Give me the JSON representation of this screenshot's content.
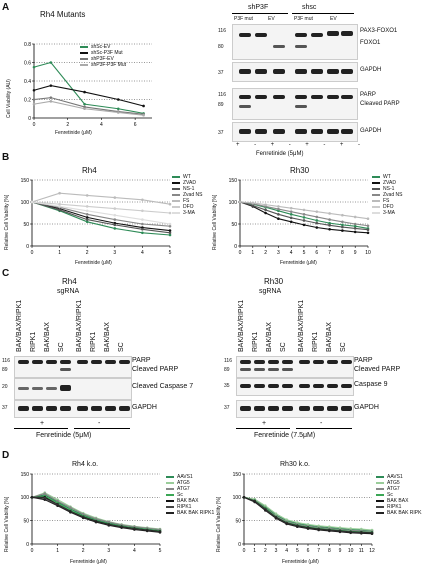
{
  "panelA": {
    "letter": "A",
    "chart_title": "Rh4 Mutants",
    "ylabel": "Cell Viability (AU)",
    "xlabel": "Fenretinide (μM)",
    "legend": [
      "shSc-EV",
      "shSc-P3F Mut",
      "shP3F-EV",
      "shP3F-P3F Mut"
    ],
    "blot_groups": [
      "shP3F",
      "shsc"
    ],
    "blot_subgroups": [
      "P3F mut",
      "EV",
      "P3F mut",
      "EV"
    ],
    "bands": [
      "PAX3-FOXO1",
      "FOXO1",
      "GAPDH",
      "PARP",
      "Cleaved PARP",
      "GAPDH"
    ],
    "mw_top": [
      "116",
      "80",
      "37"
    ],
    "mw_bottom": [
      "116",
      "89",
      "37"
    ],
    "treatment_signs": [
      "+",
      "-",
      "+",
      "-",
      "+",
      "-",
      "+",
      "-"
    ],
    "treatment": "Fenretinide (5μM)"
  },
  "panelB": {
    "letter": "B",
    "chart_titles": [
      "Rh4",
      "Rh30"
    ],
    "ylabel": "Relative Cell Viability [%]",
    "xlabel": "Fenretinide (μM)",
    "legend": [
      "WT",
      "ZVAD",
      "NS-1",
      "Zvad NS",
      "FS",
      "DFO",
      "3-MA"
    ]
  },
  "panelC": {
    "letter": "C",
    "titles": [
      "Rh4",
      "Rh30"
    ],
    "sub": "sgRNA",
    "lanes": [
      "BAK/BAX/RIPK1",
      "RIPK1",
      "BAK/BAX",
      "SC",
      "BAK/BAX/RIPK1",
      "RIPK1",
      "BAK/BAX",
      "SC"
    ],
    "bands_left": [
      "PARP",
      "Cleaved PARP",
      "Cleaved Caspase 7",
      "GAPDH"
    ],
    "bands_right": [
      "PARP",
      "Cleaved PARP",
      "Caspase 9",
      "GAPDH"
    ],
    "mw_left": [
      "116",
      "89",
      "20",
      "37"
    ],
    "mw_right": [
      "116",
      "89",
      "35",
      "37"
    ],
    "signs": [
      "+",
      "-"
    ],
    "treat_left": "Fenretinide (5μM)",
    "treat_right": "Fenretinide (7.5μM)"
  },
  "panelD": {
    "letter": "D",
    "chart_titles": [
      "Rh4 k.o.",
      "Rh30 k.o."
    ],
    "ylabel": "Relative Cell Viability [%]",
    "xlabel": "Fenretinide (μM)",
    "legend": [
      "AAVS1",
      "ATG5",
      "ATG7",
      "Sc",
      "BAK BAX",
      "RIPK1",
      "BAK BAK RIPK1"
    ]
  },
  "chart_data": [
    {
      "type": "line",
      "title": "Rh4 Mutants",
      "xlabel": "Fenretinide (μM)",
      "ylabel": "Cell Viability (AU)",
      "xlim": [
        0,
        7
      ],
      "ylim": [
        0,
        0.8
      ],
      "x_ticks": [
        0,
        2,
        4,
        6
      ],
      "y_ticks": [
        0.0,
        0.2,
        0.4,
        0.6,
        0.8
      ],
      "x": [
        0,
        1,
        3,
        5,
        6.5
      ],
      "series": [
        {
          "name": "shSc-EV",
          "color": "#2e8b57",
          "values": [
            0.55,
            0.6,
            0.15,
            0.1,
            0.05
          ]
        },
        {
          "name": "shSc-P3F Mut",
          "color": "#111111",
          "values": [
            0.3,
            0.35,
            0.28,
            0.2,
            0.13
          ]
        },
        {
          "name": "shP3F-EV",
          "color": "#777777",
          "values": [
            0.2,
            0.22,
            0.12,
            0.07,
            0.04
          ]
        },
        {
          "name": "shP3F-P3F Mut",
          "color": "#aaaaaa",
          "values": [
            0.15,
            0.18,
            0.1,
            0.06,
            0.03
          ]
        }
      ]
    },
    {
      "type": "line",
      "title": "Rh4",
      "xlabel": "Fenretinide (μM)",
      "ylabel": "Relative Cell Viability [%]",
      "xlim": [
        0,
        5
      ],
      "ylim": [
        0,
        150
      ],
      "x_ticks": [
        0,
        1,
        2,
        3,
        4,
        5
      ],
      "y_ticks": [
        0,
        50,
        100,
        150
      ],
      "x": [
        0,
        1,
        2,
        3,
        4,
        5
      ],
      "series": [
        {
          "name": "WT",
          "color": "#2e8b57",
          "values": [
            100,
            80,
            55,
            40,
            30,
            25
          ]
        },
        {
          "name": "ZVAD",
          "color": "#111111",
          "values": [
            100,
            85,
            65,
            52,
            42,
            35
          ]
        },
        {
          "name": "NS-1",
          "color": "#555555",
          "values": [
            100,
            82,
            60,
            48,
            38,
            30
          ]
        },
        {
          "name": "Zvad NS",
          "color": "#888888",
          "values": [
            100,
            88,
            72,
            60,
            50,
            45
          ]
        },
        {
          "name": "FS",
          "color": "#bbbbbb",
          "values": [
            100,
            120,
            115,
            110,
            105,
            95
          ]
        },
        {
          "name": "DFO",
          "color": "#cccccc",
          "values": [
            100,
            95,
            90,
            85,
            80,
            75
          ]
        },
        {
          "name": "3-MA",
          "color": "#dddddd",
          "values": [
            100,
            90,
            80,
            70,
            60,
            50
          ]
        }
      ]
    },
    {
      "type": "line",
      "title": "Rh30",
      "xlabel": "Fenretinide (μM)",
      "ylabel": "Relative Cell Viability [%]",
      "xlim": [
        0,
        10
      ],
      "ylim": [
        0,
        150
      ],
      "x_ticks": [
        0,
        1,
        2,
        3,
        4,
        5,
        6,
        7,
        8,
        9,
        10
      ],
      "y_ticks": [
        0,
        50,
        100,
        150
      ],
      "x": [
        0,
        1,
        2,
        3,
        4,
        5,
        6,
        7,
        8,
        9,
        10
      ],
      "series": [
        {
          "name": "WT",
          "color": "#2e8b57",
          "values": [
            100,
            95,
            88,
            80,
            72,
            65,
            58,
            52,
            48,
            45,
            40
          ]
        },
        {
          "name": "ZVAD",
          "color": "#111111",
          "values": [
            100,
            90,
            75,
            62,
            55,
            48,
            42,
            38,
            35,
            32,
            30
          ]
        },
        {
          "name": "NS-1",
          "color": "#555555",
          "values": [
            100,
            92,
            82,
            72,
            64,
            58,
            52,
            47,
            43,
            40,
            37
          ]
        },
        {
          "name": "Zvad NS",
          "color": "#888888",
          "values": [
            100,
            96,
            90,
            84,
            78,
            72,
            66,
            60,
            55,
            50,
            46
          ]
        },
        {
          "name": "FS",
          "color": "#bbbbbb",
          "values": [
            100,
            98,
            94,
            90,
            86,
            82,
            78,
            74,
            70,
            66,
            62
          ]
        }
      ]
    },
    {
      "type": "line",
      "title": "Rh4 k.o.",
      "xlabel": "Fenretinide (μM)",
      "ylabel": "Relative Cell Viability [%]",
      "xlim": [
        0,
        5
      ],
      "ylim": [
        0,
        150
      ],
      "x_ticks": [
        0,
        1,
        2,
        3,
        4,
        5
      ],
      "y_ticks": [
        0,
        50,
        100,
        150
      ],
      "x": [
        0,
        0.5,
        1,
        1.5,
        2,
        2.5,
        3,
        3.5,
        4,
        4.5,
        5
      ],
      "series": [
        {
          "name": "AAVS1",
          "color": "#2e8b57",
          "values": [
            100,
            105,
            90,
            75,
            62,
            52,
            45,
            40,
            36,
            33,
            30
          ]
        },
        {
          "name": "ATG5",
          "color": "#9acd9a",
          "values": [
            100,
            110,
            95,
            80,
            66,
            56,
            48,
            42,
            38,
            35,
            32
          ]
        },
        {
          "name": "ATG7",
          "color": "#888888",
          "values": [
            100,
            108,
            92,
            78,
            64,
            54,
            47,
            41,
            37,
            34,
            31
          ]
        },
        {
          "name": "Sc",
          "color": "#3aa655",
          "values": [
            100,
            102,
            88,
            72,
            60,
            50,
            43,
            38,
            34,
            31,
            28
          ]
        },
        {
          "name": "BAK BAX",
          "color": "#111111",
          "values": [
            100,
            100,
            85,
            70,
            58,
            49,
            42,
            37,
            33,
            30,
            27
          ]
        },
        {
          "name": "RIPK1",
          "color": "#444444",
          "values": [
            100,
            98,
            84,
            69,
            57,
            48,
            41,
            36,
            32,
            29,
            26
          ]
        },
        {
          "name": "BAK BAK RIPK1",
          "color": "#222222",
          "values": [
            100,
            95,
            82,
            68,
            56,
            47,
            40,
            35,
            31,
            28,
            25
          ]
        }
      ]
    },
    {
      "type": "line",
      "title": "Rh30 k.o.",
      "xlabel": "Fenretinide (μM)",
      "ylabel": "Relative Cell Viability [%]",
      "xlim": [
        0,
        12
      ],
      "ylim": [
        0,
        150
      ],
      "x_ticks": [
        0,
        1,
        2,
        3,
        4,
        5,
        6,
        7,
        8,
        9,
        10,
        11,
        12
      ],
      "y_ticks": [
        0,
        50,
        100,
        150
      ],
      "x": [
        0,
        1,
        2,
        3,
        4,
        5,
        6,
        7,
        8,
        9,
        10,
        11,
        12
      ],
      "series": [
        {
          "name": "AAVS1",
          "color": "#2e8b57",
          "values": [
            100,
            95,
            80,
            62,
            50,
            44,
            40,
            37,
            35,
            33,
            31,
            30,
            29
          ]
        },
        {
          "name": "ATG5",
          "color": "#9acd9a",
          "values": [
            100,
            96,
            82,
            65,
            52,
            46,
            42,
            39,
            37,
            35,
            33,
            32,
            30
          ]
        },
        {
          "name": "ATG7",
          "color": "#888888",
          "values": [
            100,
            94,
            78,
            60,
            48,
            42,
            38,
            35,
            33,
            31,
            29,
            28,
            27
          ]
        },
        {
          "name": "Sc",
          "color": "#3aa655",
          "values": [
            100,
            93,
            77,
            58,
            46,
            40,
            36,
            33,
            31,
            29,
            27,
            26,
            25
          ]
        },
        {
          "name": "BAK BAX",
          "color": "#111111",
          "values": [
            100,
            92,
            75,
            57,
            45,
            39,
            35,
            32,
            30,
            28,
            26,
            25,
            24
          ]
        },
        {
          "name": "RIPK1",
          "color": "#444444",
          "values": [
            100,
            91,
            74,
            56,
            44,
            38,
            34,
            31,
            29,
            27,
            25,
            24,
            23
          ]
        },
        {
          "name": "BAK BAK RIPK1",
          "color": "#222222",
          "values": [
            100,
            90,
            72,
            55,
            43,
            37,
            33,
            30,
            28,
            26,
            24,
            23,
            22
          ]
        }
      ]
    }
  ]
}
